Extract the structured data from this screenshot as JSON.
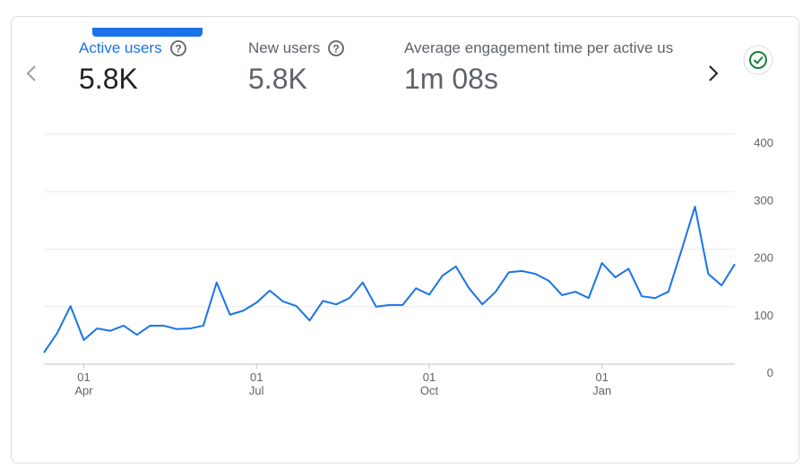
{
  "metrics": [
    {
      "label": "Active users",
      "value": "5.8K"
    },
    {
      "label": "New users",
      "value": "5.8K"
    },
    {
      "label": "Average engagement time per active us",
      "value": "1m 08s"
    }
  ],
  "chart_data": {
    "type": "line",
    "categories": [
      null,
      null,
      null,
      "01 Apr",
      null,
      null,
      null,
      null,
      null,
      null,
      null,
      null,
      null,
      null,
      null,
      null,
      "01 Jul",
      null,
      null,
      null,
      null,
      null,
      null,
      null,
      null,
      null,
      null,
      null,
      null,
      "01 Oct",
      null,
      null,
      null,
      null,
      null,
      null,
      null,
      null,
      null,
      null,
      null,
      null,
      "01 Jan",
      null,
      null,
      null,
      null,
      null,
      null,
      null,
      null,
      null,
      null
    ],
    "series": [
      {
        "name": "Active users",
        "color": "#1a73e8",
        "values": [
          20,
          54,
          101,
          42,
          62,
          58,
          67,
          51,
          67,
          67,
          61,
          62,
          67,
          142,
          86,
          93,
          107,
          128,
          109,
          101,
          76,
          110,
          104,
          115,
          142,
          100,
          103,
          103,
          132,
          121,
          154,
          170,
          132,
          104,
          126,
          160,
          162,
          157,
          145,
          120,
          126,
          115,
          176,
          151,
          166,
          118,
          115,
          126,
          199,
          274,
          157,
          137,
          174
        ]
      }
    ],
    "ylim": [
      0,
      400
    ],
    "yticks": [
      0,
      100,
      200,
      300,
      400
    ],
    "grid": true
  }
}
